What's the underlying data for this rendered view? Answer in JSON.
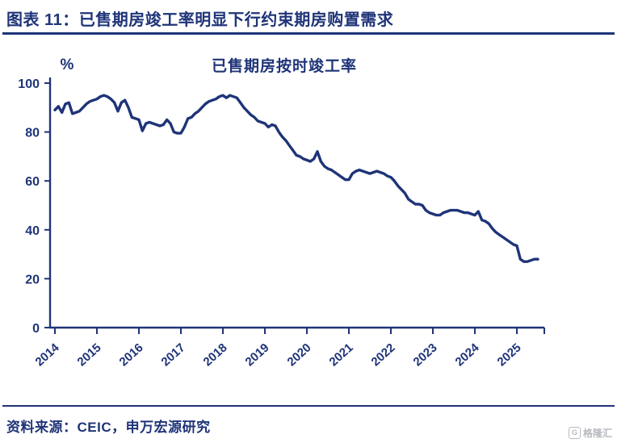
{
  "header": {
    "title": "图表 11：已售期房竣工率明显下行约束期房购置需求"
  },
  "chart": {
    "unit_label": "%",
    "title": "已售期房按时竣工率"
  },
  "footer": {
    "source": "资料来源：CEIC，申万宏源研究"
  },
  "watermark": {
    "text": "格隆汇",
    "logo_glyph": "G"
  },
  "colors": {
    "navy": "#1F3478",
    "line": "#1F3478",
    "watermark": "#A9ADB3"
  },
  "chart_data": {
    "type": "line",
    "title": "已售期房按时竣工率",
    "xlabel": "",
    "ylabel": "%",
    "ylim": [
      0,
      100
    ],
    "yticks": [
      0,
      20,
      40,
      60,
      80,
      100
    ],
    "xticks": [
      2014,
      2015,
      2016,
      2017,
      2018,
      2019,
      2020,
      2021,
      2022,
      2023,
      2024,
      2025
    ],
    "x_start": 2014.0,
    "x_step": "monthly",
    "grid": false,
    "legend": "none",
    "series": [
      {
        "name": "已售期房按时竣工率",
        "values": [
          89,
          90.5,
          88,
          91.5,
          92,
          87.5,
          88,
          88.5,
          90,
          91.5,
          92.5,
          93,
          93.5,
          94.5,
          95,
          94.5,
          93.5,
          92,
          88.5,
          92,
          93,
          90,
          86,
          85.5,
          85,
          80.5,
          83.5,
          84,
          83.5,
          83,
          82.5,
          83,
          85,
          83.5,
          80,
          79.5,
          79.5,
          82,
          85.5,
          86,
          87.5,
          88.5,
          90,
          91.5,
          92.5,
          93,
          93.5,
          94.5,
          95,
          94,
          95,
          94.5,
          94,
          92,
          90,
          88.5,
          87,
          86,
          84.5,
          84,
          83.5,
          82,
          83,
          82.5,
          80,
          78,
          76.5,
          74.5,
          72.5,
          70.5,
          70,
          69,
          68.5,
          68,
          69,
          72,
          68,
          66,
          65,
          64.5,
          63.5,
          62.5,
          61.5,
          60.5,
          60.5,
          63,
          64,
          64.5,
          64,
          63.5,
          63,
          63.5,
          64,
          63.5,
          63,
          62,
          61.5,
          60,
          58,
          56.5,
          55,
          52.5,
          51.5,
          50.5,
          50.5,
          50,
          48,
          47,
          46.5,
          46,
          46,
          47,
          47.5,
          48,
          48,
          48,
          47.5,
          47,
          47,
          46.5,
          46,
          47.5,
          44,
          43.5,
          42.5,
          40.5,
          39,
          38,
          37,
          36,
          35,
          34,
          33.5,
          28,
          27,
          27,
          27.5,
          28,
          28
        ]
      }
    ]
  }
}
